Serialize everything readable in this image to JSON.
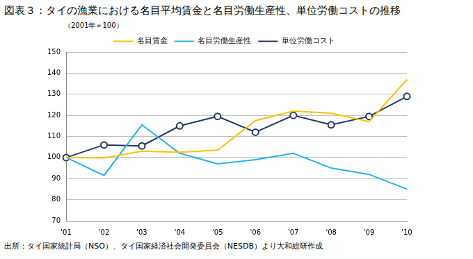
{
  "chart_data": {
    "type": "line",
    "title": "図表３：タイの漁業における名目平均賃金と名目労働生産性、単位労働コストの推移",
    "ylabel": "（2001年＝100）",
    "source": "出所：タイ国家統計局（NSO）、タイ国家経済社会開発委員会（NESDB）より大和総研作成",
    "categories": [
      "'01",
      "'02",
      "'03",
      "'04",
      "'05",
      "'06",
      "'07",
      "'08",
      "'09",
      "'10"
    ],
    "series": [
      {
        "name": "名目賃金",
        "color": "#FFC000",
        "marker": "none",
        "line_style": "solid",
        "values": [
          100,
          99.8,
          103,
          102.5,
          103.5,
          117.5,
          122,
          121,
          117,
          137
        ]
      },
      {
        "name": "名目労働生産性",
        "color": "#1FB4E8",
        "marker": "none",
        "line_style": "solid",
        "values": [
          100,
          91.5,
          115.5,
          102,
          97,
          99,
          102,
          95,
          92,
          85
        ]
      },
      {
        "name": "単位労働コスト",
        "color": "#1F3864",
        "marker": "circle",
        "line_style": "solid",
        "values": [
          100,
          106,
          105.5,
          115,
          119.5,
          112,
          120,
          115.5,
          119.5,
          129
        ]
      }
    ],
    "ylim": [
      70,
      150
    ],
    "yticks": [
      70,
      80,
      90,
      100,
      110,
      120,
      130,
      140,
      150
    ],
    "grid": true,
    "legend": "top"
  }
}
